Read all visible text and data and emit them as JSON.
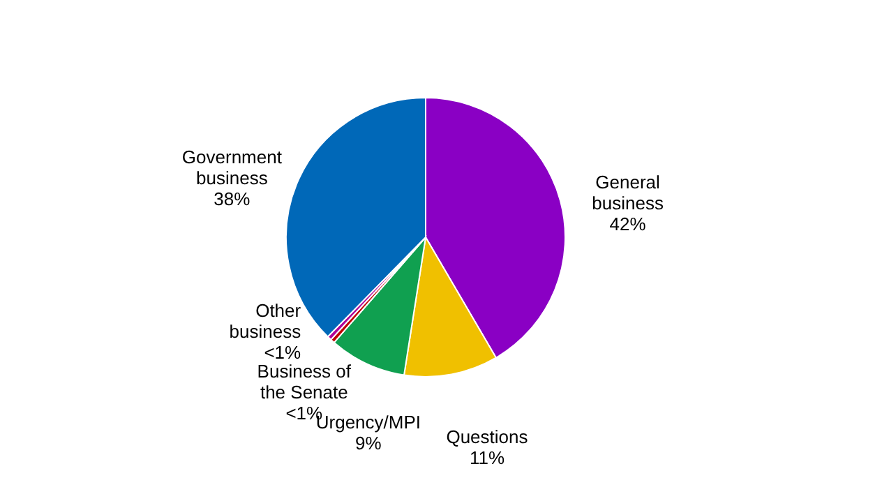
{
  "chart_data": {
    "type": "pie",
    "categories": [
      "General business",
      "Questions",
      "Urgency/MPI",
      "Business of the Senate",
      "Other business",
      "Government business"
    ],
    "values": [
      42,
      11,
      9,
      0.5,
      0.5,
      38
    ],
    "value_labels": [
      "42%",
      "11%",
      "9%",
      "<1%",
      "<1%",
      "38%"
    ],
    "colors": [
      "#8a00c4",
      "#f0c000",
      "#10a050",
      "#c00000",
      "#b0009a",
      "#0068b8"
    ],
    "legend": false
  }
}
